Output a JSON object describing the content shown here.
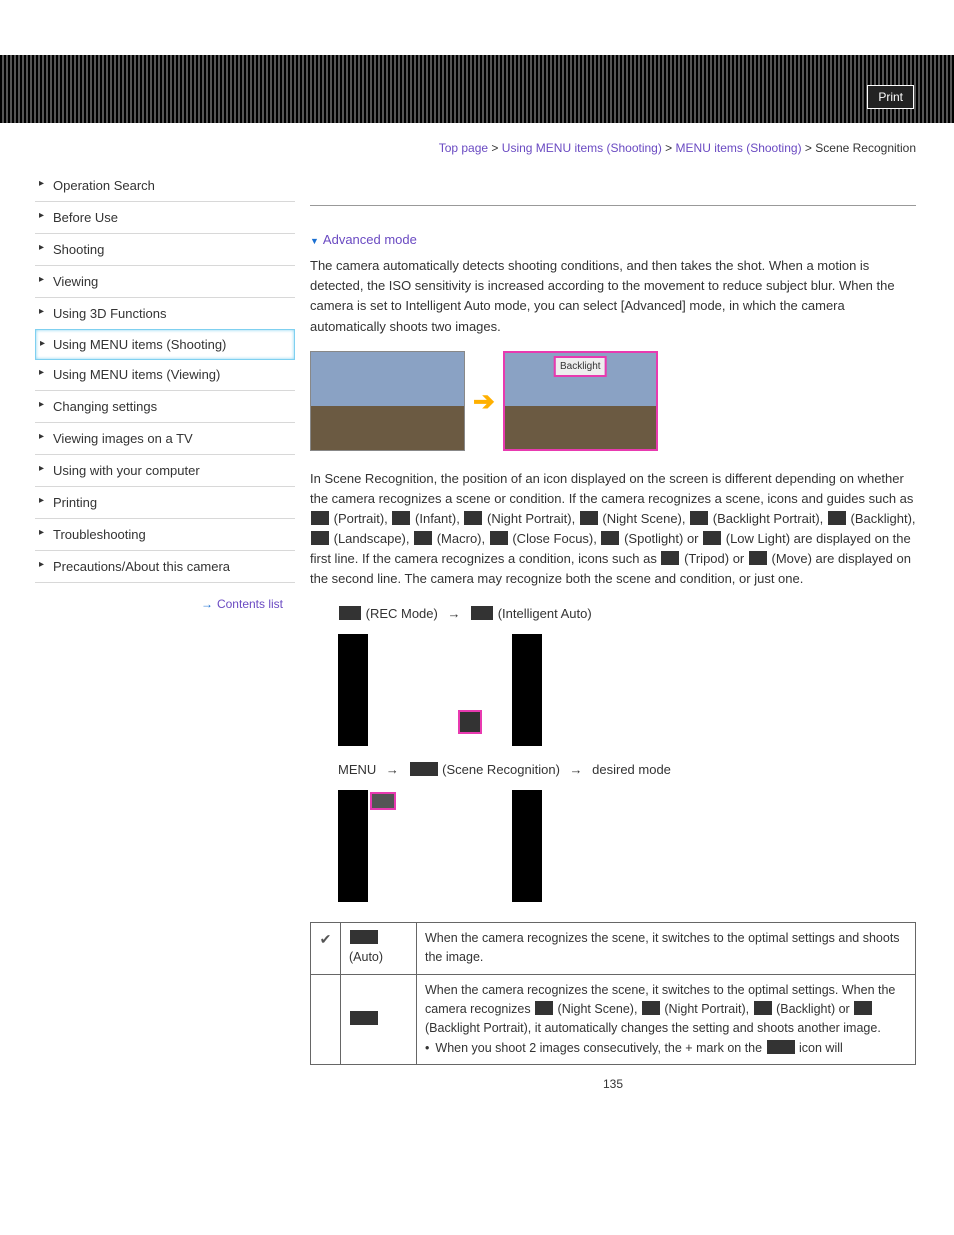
{
  "header": {
    "print": "Print"
  },
  "breadcrumb": {
    "items": [
      "Top page",
      "Using MENU items (Shooting)",
      "MENU items (Shooting)"
    ],
    "current": "Scene Recognition",
    "sep": " > "
  },
  "sidebar": {
    "items": [
      "Operation Search",
      "Before Use",
      "Shooting",
      "Viewing",
      "Using 3D Functions",
      "Using MENU items (Shooting)",
      "Using MENU items (Viewing)",
      "Changing settings",
      "Viewing images on a TV",
      "Using with your computer",
      "Printing",
      "Troubleshooting",
      "Precautions/About this camera"
    ],
    "active_index": 5,
    "contents_list": "Contents list"
  },
  "content": {
    "advanced_mode_link": "Advanced mode",
    "intro": "The camera automatically detects shooting conditions, and then takes the shot. When a motion is detected, the ISO sensitivity is increased according to the movement to reduce subject blur. When the camera is set to Intelligent Auto mode, you can select [Advanced] mode, in which the camera automatically shoots two images.",
    "backlight_tag": "Backlight",
    "scene_text": {
      "p1a": "In Scene Recognition, the position of an icon displayed on the screen is different depending on whether the camera recognizes a scene or condition. If the camera recognizes a scene, icons and guides such as ",
      "portrait": " (Portrait), ",
      "infant": " (Infant), ",
      "night_portrait": " (Night Portrait), ",
      "night_scene": " (Night Scene), ",
      "backlight_portrait": " (Backlight Portrait), ",
      "backlight": " (Backlight), ",
      "landscape": " (Landscape), ",
      "macro": " (Macro), ",
      "close_focus": " (Close Focus), ",
      "spotlight": " (Spotlight) or ",
      "low_light": " (Low Light) are displayed on the first line. If the camera recognizes a condition, icons such as ",
      "tripod": " (Tripod) or ",
      "move": " (Move) are displayed on the second line. The camera may recognize both the scene and condition, or just one."
    },
    "step1": {
      "a": " (REC Mode) ",
      "b": " (Intelligent Auto)"
    },
    "step2": {
      "a": "MENU ",
      "b": " (Scene Recognition) ",
      "c": " desired mode"
    },
    "table": {
      "row1": {
        "mode": " (Auto)",
        "desc": "When the camera recognizes the scene, it switches to the optimal settings and shoots the image."
      },
      "row2": {
        "line1": "When the camera recognizes the scene, it switches to the optimal settings. When the camera recognizes ",
        "ns": " (Night Scene), ",
        "np": " (Night Portrait), ",
        "bl": " (Backlight) or ",
        "blp": " (Backlight Portrait), it automatically changes the setting and shoots another image.",
        "bullet": "When you shoot 2 images consecutively, the + mark on the ",
        "bullet_end": " icon will"
      }
    },
    "page_number": "135"
  }
}
